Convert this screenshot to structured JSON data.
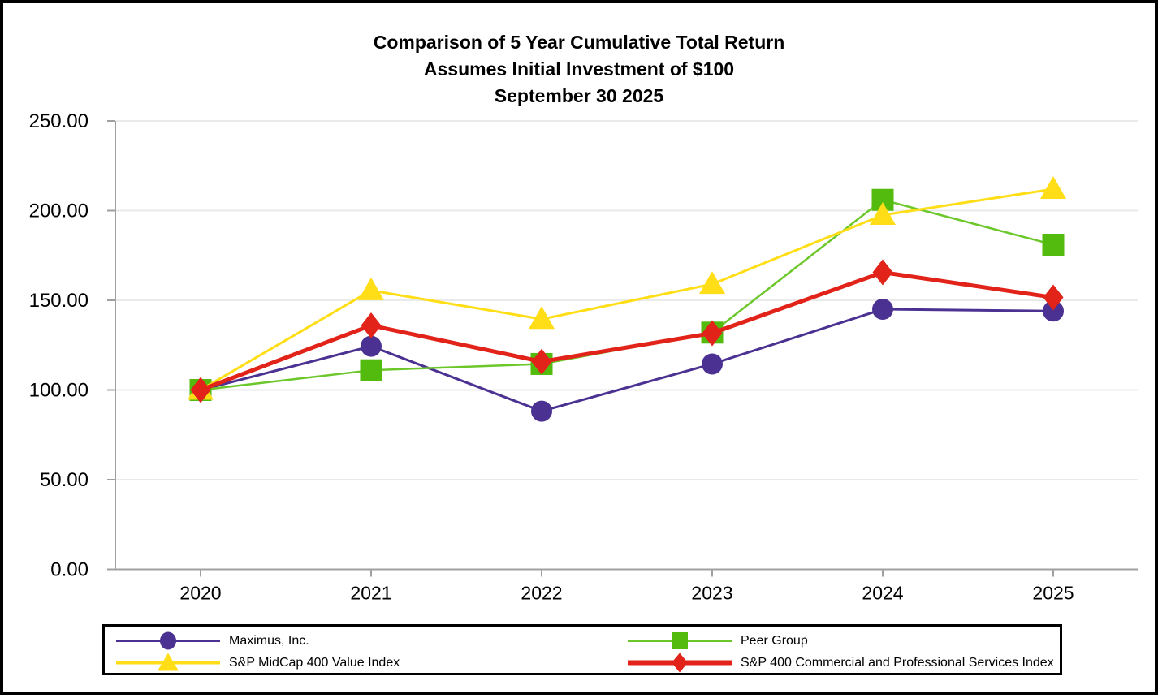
{
  "title": {
    "line1": "Comparison of 5 Year Cumulative Total Return",
    "line2": "Assumes Initial Investment of $100",
    "line3": "September 30 2025"
  },
  "colors": {
    "grid": "#EAEAEA",
    "axis": "#A0A0A0",
    "text": "#000000",
    "legend_border": "#000000"
  },
  "chart_data": {
    "type": "line",
    "title": "Comparison of 5 Year Cumulative Total Return — Assumes Initial Investment of $100 — September 30 2025",
    "title_lines": [
      "Comparison of 5 Year Cumulative Total Return",
      "Assumes Initial Investment of $100",
      "September 30 2025"
    ],
    "xlabel": "",
    "ylabel": "",
    "categories": [
      "2020",
      "2021",
      "2022",
      "2023",
      "2024",
      "2025"
    ],
    "ylim": [
      0,
      250
    ],
    "yticks": [
      0,
      50,
      100,
      150,
      200,
      250
    ],
    "ytick_labels": [
      "0.00",
      "50.00",
      "100.00",
      "150.00",
      "200.00",
      "250.00"
    ],
    "grid": "horizontal",
    "legend_position": "bottom",
    "series": [
      {
        "id": "maximus",
        "name": "Maximus, Inc.",
        "marker": "circle",
        "color": "#4B3292",
        "line_width": 3,
        "legend_line_width": 3,
        "values": [
          100.0,
          124.4,
          88.2,
          114.5,
          145.0,
          144.0
        ]
      },
      {
        "id": "peer-group",
        "name": "Peer Group",
        "marker": "square",
        "color": "#52BB0D",
        "line_color": "#6CC72B",
        "line_width": 2.5,
        "legend_line_width": 3,
        "values": [
          100.0,
          111.0,
          114.5,
          132.0,
          206.0,
          181.0
        ]
      },
      {
        "id": "sp-midcap-400-value",
        "name": "S&P MidCap 400 Value Index",
        "marker": "triangle",
        "color": "#FFDE17",
        "line_width": 3,
        "legend_line_width": 4,
        "values": [
          100.0,
          155.5,
          139.5,
          159.0,
          197.5,
          212.0
        ]
      },
      {
        "id": "sp-400-commercial",
        "name": "S&P 400 Commercial and Professional Services Index",
        "marker": "diamond",
        "color": "#E2231A",
        "line_width": 5,
        "legend_line_width": 6,
        "values": [
          100.0,
          136.0,
          115.8,
          131.7,
          165.6,
          151.6
        ]
      }
    ]
  }
}
